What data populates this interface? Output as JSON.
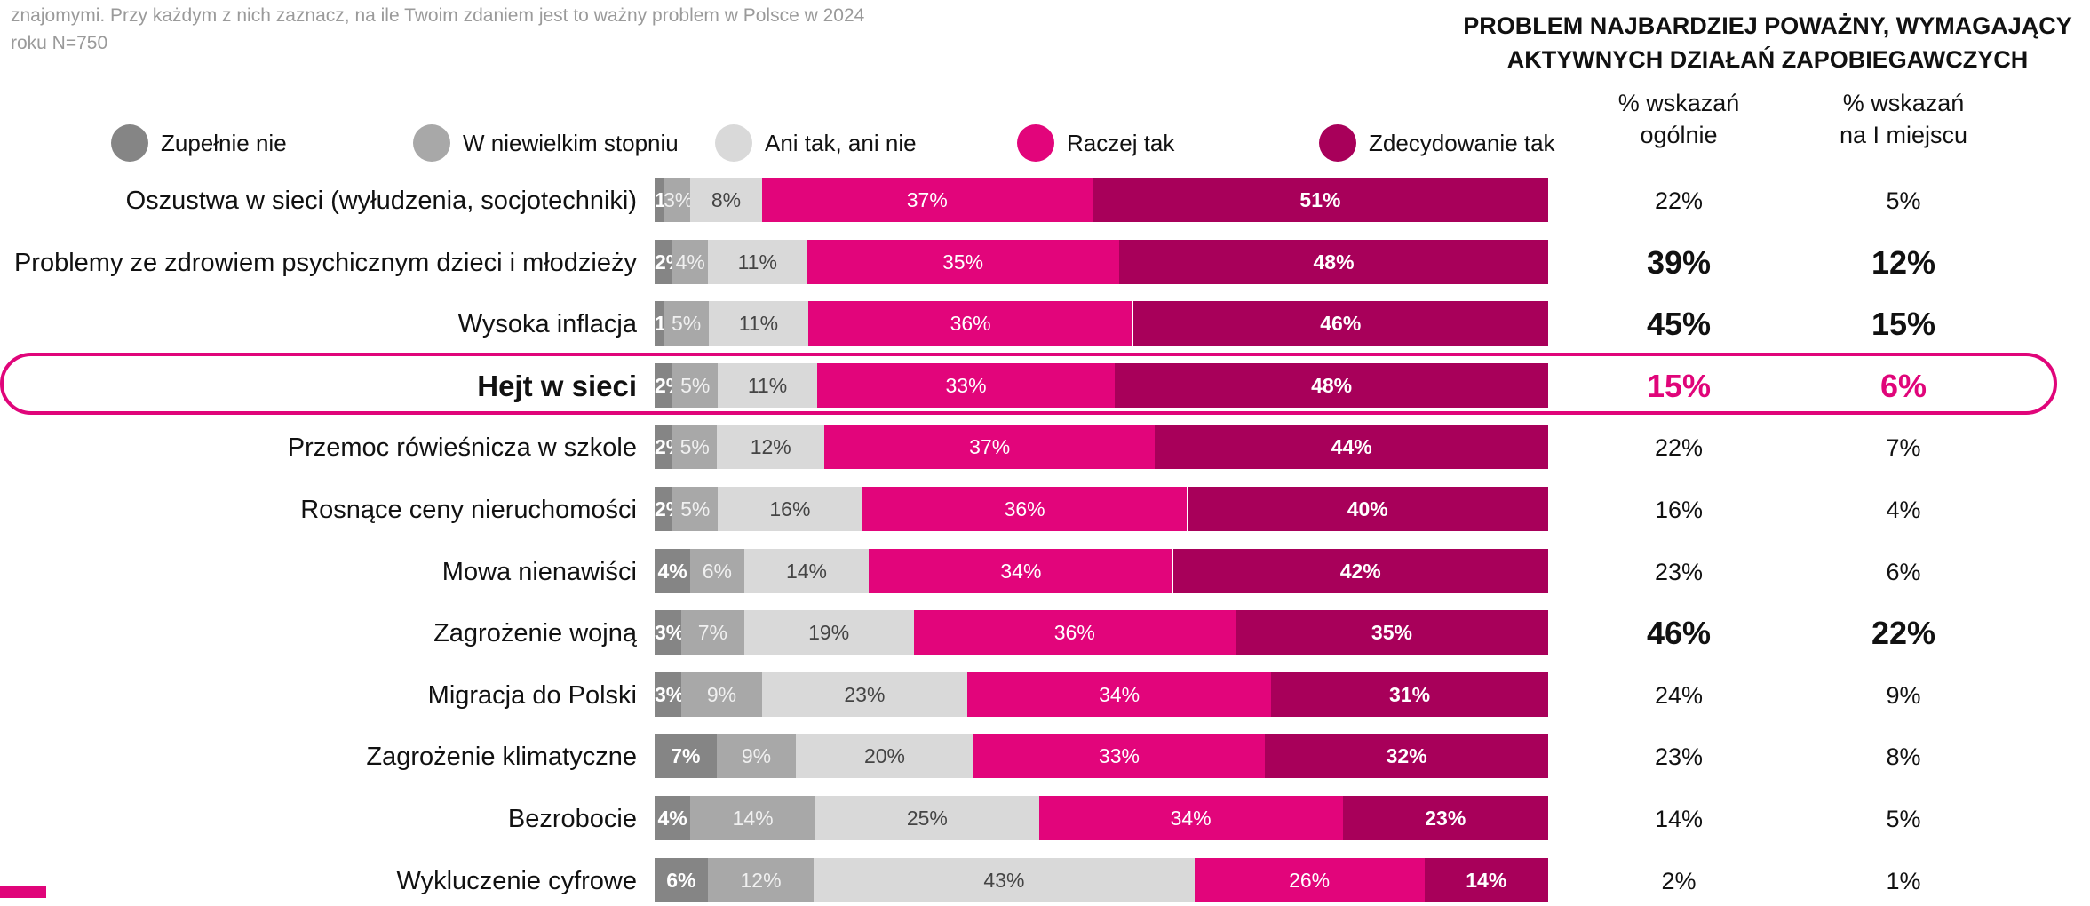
{
  "intro": {
    "line1": "znajomymi. Przy każdym z nich zaznacz, na ile Twoim zdaniem jest to ważny problem w Polsce w 2024",
    "line2": "roku N=750"
  },
  "right_header": {
    "line1": "PROBLEM NAJBARDZIEJ POWAŻNY, WYMAGAJĄCY",
    "line2": "AKTYWNYCH DZIAŁAŃ ZAPOBIEGAWCZYCH",
    "col1_line1": "% wskazań",
    "col1_line2": "ogólnie",
    "col2_line1": "% wskazań",
    "col2_line2": "na I miejscu"
  },
  "colors": {
    "zupelnie_nie": "#858585",
    "w_niewielkim": "#a8a8a8",
    "ani": "#d9d9d9",
    "raczej": "#e2057b",
    "zdecydowanie": "#a8005a",
    "highlight": "#e0057a"
  },
  "chart_data": {
    "type": "bar",
    "stacked": true,
    "orientation": "horizontal",
    "normalized": true,
    "legend": [
      "Zupełnie nie",
      "W niewielkim stopniu",
      "Ani tak, ani nie",
      "Raczej tak",
      "Zdecydowanie tak"
    ],
    "legend_position": "top",
    "categories": [
      "Oszustwa w sieci (wyłudzenia, socjotechniki)",
      "Problemy ze zdrowiem psychicznym dzieci i młodzieży",
      "Wysoka inflacja",
      "Hejt w sieci",
      "Przemoc rówieśnicza w szkole",
      "Rosnące ceny nieruchomości",
      "Mowa nienawiści",
      "Zagrożenie wojną",
      "Migracja do Polski",
      "Zagrożenie klimatyczne",
      "Bezrobocie",
      "Wykluczenie cyfrowe"
    ],
    "highlighted_category": "Hejt w sieci",
    "series": [
      {
        "name": "Zupełnie nie",
        "values": [
          1,
          2,
          1,
          2,
          2,
          2,
          4,
          3,
          3,
          7,
          4,
          6
        ],
        "labels": [
          "1%",
          "2%",
          "1%",
          "2%",
          "2%",
          "2%",
          "4%",
          "3%",
          "3%",
          "7%",
          "4%",
          "6%"
        ]
      },
      {
        "name": "W niewielkim stopniu",
        "values": [
          3,
          4,
          5,
          5,
          5,
          5,
          6,
          7,
          9,
          9,
          14,
          12
        ],
        "labels": [
          "3%",
          "4%",
          "5%",
          "5%",
          "5%",
          "5%",
          "6%",
          "7%",
          "9%",
          "9%",
          "14%",
          "12%"
        ]
      },
      {
        "name": "Ani tak, ani nie",
        "values": [
          8,
          11,
          11,
          11,
          12,
          16,
          14,
          19,
          23,
          20,
          25,
          43
        ],
        "labels": [
          "8%",
          "11%",
          "11%",
          "11%",
          "12%",
          "16%",
          "14%",
          "19%",
          "23%",
          "20%",
          "25%",
          "43%"
        ]
      },
      {
        "name": "Raczej tak",
        "values": [
          37,
          35,
          36,
          33,
          37,
          36,
          34,
          36,
          34,
          33,
          34,
          26
        ],
        "labels": [
          "37%",
          "35%",
          "36%",
          "33%",
          "37%",
          "36%",
          "34%",
          "36%",
          "34%",
          "33%",
          "34%",
          "26%"
        ]
      },
      {
        "name": "Zdecydowanie tak",
        "values": [
          51,
          48,
          46,
          48,
          44,
          40,
          42,
          35,
          31,
          32,
          23,
          14
        ],
        "labels": [
          "51%",
          "48%",
          "46%",
          "48%",
          "44%",
          "40%",
          "42%",
          "35%",
          "31%",
          "32%",
          "23%",
          "14%"
        ]
      }
    ],
    "table": {
      "ogolnie": [
        "22%",
        "39%",
        "45%",
        "15%",
        "22%",
        "16%",
        "23%",
        "46%",
        "24%",
        "23%",
        "14%",
        "2%"
      ],
      "na_i_miejscu": [
        "5%",
        "12%",
        "15%",
        "6%",
        "7%",
        "4%",
        "6%",
        "22%",
        "9%",
        "8%",
        "5%",
        "1%"
      ],
      "emphasized_rows": [
        1,
        2,
        7
      ]
    }
  }
}
